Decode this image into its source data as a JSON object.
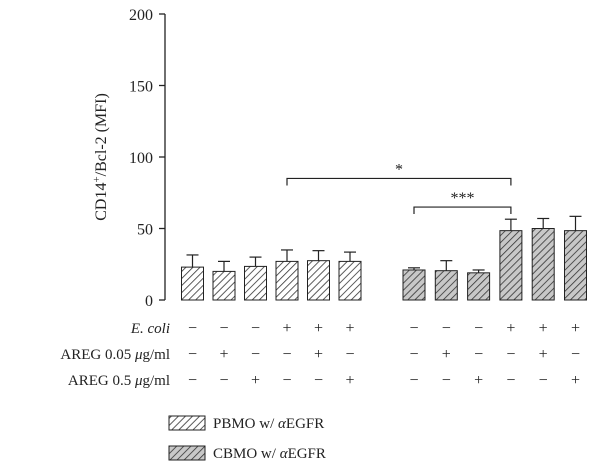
{
  "chart_data": {
    "type": "bar",
    "ylabel_main": "CD14",
    "ylabel_sup": "+",
    "ylabel_rest": "/Bcl-2 (MFI)",
    "ylim": [
      0,
      200
    ],
    "yticks": [
      0,
      50,
      100,
      150,
      200
    ],
    "grid": false,
    "series": [
      {
        "name_prefix": "PBMO w/ ",
        "name_greek": "α",
        "name_suffix": "EGFR",
        "values": [
          23,
          20,
          23.5,
          27,
          27.5,
          27
        ],
        "errors": [
          8.5,
          7,
          6.5,
          8,
          7,
          6.5
        ]
      },
      {
        "name_prefix": "CBMO w/ ",
        "name_greek": "α",
        "name_suffix": "EGFR",
        "values": [
          21,
          20.5,
          19,
          48.5,
          50,
          48.5
        ],
        "errors": [
          1.5,
          7,
          2,
          8,
          7,
          10
        ]
      }
    ],
    "conditions": [
      {
        "label": "E. coli",
        "italic_whole": true,
        "signs": [
          "−",
          "−",
          "−",
          "+",
          "+",
          "+",
          "−",
          "−",
          "−",
          "+",
          "+",
          "+"
        ]
      },
      {
        "label_prefix": "AREG 0.05 ",
        "label_greek": "μ",
        "label_suffix": "g/ml",
        "signs": [
          "−",
          "+",
          "−",
          "−",
          "+",
          "−",
          "−",
          "+",
          "−",
          "−",
          "+",
          "−"
        ]
      },
      {
        "label_prefix": "AREG 0.5 ",
        "label_greek": "μ",
        "label_suffix": "g/ml",
        "signs": [
          "−",
          "−",
          "+",
          "−",
          "−",
          "+",
          "−",
          "−",
          "+",
          "−",
          "−",
          "+"
        ]
      }
    ],
    "significance": [
      {
        "from_bar": 3,
        "to_bar": 9,
        "label": "*",
        "height": 85
      },
      {
        "from_bar": 6,
        "to_bar": 9,
        "label": "***",
        "height": 65
      }
    ],
    "colors": {
      "pbmo_fill": "#ffffff",
      "cbmo_fill": "#c8c8c8",
      "hatch": "#333333",
      "axis": "#222222"
    }
  }
}
